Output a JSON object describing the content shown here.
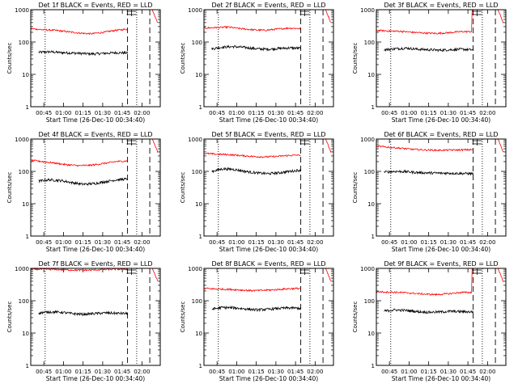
{
  "figure": {
    "xlabel": "Start Time (26-Dec-10 00:34:40)",
    "ylabel": "Counts/sec",
    "legend_text": "BLACK = Events, RED = LLD"
  },
  "axis": {
    "yscale": "log",
    "ylim": [
      1,
      1000
    ],
    "yticks": [
      1,
      10,
      100,
      1000
    ],
    "ytick_labels": [
      "1",
      "10",
      "100",
      "1000"
    ],
    "xlim_minutes": [
      "00:35",
      "02:14"
    ],
    "xticks": [
      "00:45",
      "01:00",
      "01:15",
      "01:30",
      "01:45",
      "02:00"
    ]
  },
  "colors": {
    "events": "#000000",
    "lld": "#ff0000"
  },
  "chart_data": [
    {
      "type": "line",
      "title": "Det 1f BLACK = Events, RED = LLD",
      "ylabel": "Counts/sec",
      "xlabel": "Start Time (26-Dec-10 00:34:40)",
      "yscale": "log",
      "ylim": [
        1,
        1000
      ],
      "series": [
        {
          "name": "Events",
          "color": "#000000",
          "x_start": "00:41",
          "x_end": "01:49",
          "values": [
            48,
            50,
            47,
            46,
            44,
            43,
            45,
            47,
            46
          ]
        },
        {
          "name": "LLD",
          "color": "#ff0000",
          "x_start": "00:35",
          "x_end": "01:49",
          "values": [
            260,
            240,
            230,
            210,
            190,
            180,
            200,
            230,
            250
          ]
        }
      ],
      "vlines": {
        "dotted": [
          "00:46",
          "01:56"
        ],
        "dashed": [
          "01:49",
          "02:06"
        ]
      }
    },
    {
      "type": "line",
      "title": "Det 2f BLACK = Events, RED = LLD",
      "ylabel": "Counts/sec",
      "xlabel": "Start Time (26-Dec-10 00:34:40)",
      "yscale": "log",
      "ylim": [
        1,
        1000
      ],
      "series": [
        {
          "name": "Events",
          "color": "#000000",
          "x_start": "00:41",
          "x_end": "01:49",
          "values": [
            62,
            70,
            72,
            68,
            62,
            60,
            63,
            66,
            64
          ]
        },
        {
          "name": "LLD",
          "color": "#ff0000",
          "x_start": "00:35",
          "x_end": "01:49",
          "values": [
            270,
            280,
            290,
            260,
            240,
            230,
            250,
            270,
            260
          ]
        }
      ],
      "vlines": {
        "dotted": [
          "00:46",
          "01:56"
        ],
        "dashed": [
          "01:49",
          "02:06"
        ]
      }
    },
    {
      "type": "line",
      "title": "Det 3f BLACK = Events, RED = LLD",
      "ylabel": "Counts/sec",
      "xlabel": "Start Time (26-Dec-10 00:34:40)",
      "yscale": "log",
      "ylim": [
        1,
        1000
      ],
      "series": [
        {
          "name": "Events",
          "color": "#000000",
          "x_start": "00:41",
          "x_end": "01:49",
          "values": [
            58,
            62,
            65,
            60,
            58,
            56,
            58,
            60,
            57
          ]
        },
        {
          "name": "LLD",
          "color": "#ff0000",
          "x_start": "00:35",
          "x_end": "01:49",
          "values": [
            230,
            220,
            215,
            200,
            190,
            185,
            195,
            210,
            1000
          ]
        }
      ],
      "vlines": {
        "dotted": [
          "00:46",
          "01:56"
        ],
        "dashed": [
          "01:49",
          "02:06"
        ]
      }
    },
    {
      "type": "line",
      "title": "Det 4f BLACK = Events, RED = LLD",
      "ylabel": "Counts/sec",
      "xlabel": "Start Time (26-Dec-10 00:34:40)",
      "yscale": "log",
      "ylim": [
        1,
        1000
      ],
      "series": [
        {
          "name": "Events",
          "color": "#000000",
          "x_start": "00:41",
          "x_end": "01:49",
          "values": [
            50,
            55,
            52,
            45,
            40,
            42,
            48,
            55,
            58
          ]
        },
        {
          "name": "LLD",
          "color": "#ff0000",
          "x_start": "00:35",
          "x_end": "01:49",
          "values": [
            220,
            200,
            180,
            160,
            150,
            155,
            175,
            200,
            210
          ]
        }
      ],
      "vlines": {
        "dotted": [
          "00:46",
          "01:56"
        ],
        "dashed": [
          "01:49",
          "02:06"
        ]
      }
    },
    {
      "type": "line",
      "title": "Det 5f BLACK = Events, RED = LLD",
      "ylabel": "Counts/sec",
      "xlabel": "Start Time (26-Dec-10 00:34:40)",
      "yscale": "log",
      "ylim": [
        1,
        1000
      ],
      "series": [
        {
          "name": "Events",
          "color": "#000000",
          "x_start": "00:41",
          "x_end": "01:49",
          "values": [
            100,
            120,
            115,
            100,
            90,
            85,
            90,
            100,
            110
          ]
        },
        {
          "name": "LLD",
          "color": "#ff0000",
          "x_start": "00:35",
          "x_end": "01:49",
          "values": [
            360,
            340,
            330,
            310,
            290,
            280,
            290,
            310,
            320
          ]
        }
      ],
      "vlines": {
        "dotted": [
          "00:46",
          "01:56"
        ],
        "dashed": [
          "01:49",
          "02:06"
        ]
      }
    },
    {
      "type": "line",
      "title": "Det 6f BLACK = Events, RED = LLD",
      "ylabel": "Counts/sec",
      "xlabel": "Start Time (26-Dec-10 00:34:40)",
      "yscale": "log",
      "ylim": [
        1,
        1000
      ],
      "series": [
        {
          "name": "Events",
          "color": "#000000",
          "x_start": "00:41",
          "x_end": "01:49",
          "values": [
            95,
            100,
            98,
            92,
            90,
            88,
            88,
            86,
            85
          ]
        },
        {
          "name": "LLD",
          "color": "#ff0000",
          "x_start": "00:35",
          "x_end": "01:49",
          "values": [
            600,
            560,
            520,
            480,
            460,
            450,
            455,
            460,
            470
          ]
        }
      ],
      "vlines": {
        "dotted": [
          "00:46",
          "01:56"
        ],
        "dashed": [
          "01:49",
          "02:06"
        ]
      }
    },
    {
      "type": "line",
      "title": "Det 7f BLACK = Events, RED = LLD",
      "ylabel": "Counts/sec",
      "xlabel": "Start Time (26-Dec-10 00:34:40)",
      "yscale": "log",
      "ylim": [
        1,
        1000
      ],
      "series": [
        {
          "name": "Events",
          "color": "#000000",
          "x_start": "00:41",
          "x_end": "01:49",
          "values": [
            42,
            45,
            44,
            40,
            38,
            40,
            42,
            41,
            40
          ]
        },
        {
          "name": "LLD",
          "color": "#ff0000",
          "x_start": "00:35",
          "x_end": "01:49",
          "values": [
            950,
            940,
            930,
            900,
            880,
            890,
            920,
            940,
            950
          ]
        }
      ],
      "vlines": {
        "dotted": [
          "00:46",
          "01:56"
        ],
        "dashed": [
          "01:49",
          "02:06"
        ]
      }
    },
    {
      "type": "line",
      "title": "Det 8f BLACK = Events, RED = LLD",
      "ylabel": "Counts/sec",
      "xlabel": "Start Time (26-Dec-10 00:34:40)",
      "yscale": "log",
      "ylim": [
        1,
        1000
      ],
      "series": [
        {
          "name": "Events",
          "color": "#000000",
          "x_start": "00:41",
          "x_end": "01:49",
          "values": [
            55,
            62,
            60,
            56,
            52,
            54,
            58,
            60,
            58
          ]
        },
        {
          "name": "LLD",
          "color": "#ff0000",
          "x_start": "00:35",
          "x_end": "01:49",
          "values": [
            240,
            230,
            225,
            215,
            205,
            210,
            220,
            235,
            240
          ]
        }
      ],
      "vlines": {
        "dotted": [
          "00:46",
          "01:56"
        ],
        "dashed": [
          "01:49",
          "02:06"
        ]
      }
    },
    {
      "type": "line",
      "title": "Det 9f BLACK = Events, RED = LLD",
      "ylabel": "Counts/sec",
      "xlabel": "Start Time (26-Dec-10 00:34:40)",
      "yscale": "log",
      "ylim": [
        1,
        1000
      ],
      "series": [
        {
          "name": "Events",
          "color": "#000000",
          "x_start": "00:41",
          "x_end": "01:49",
          "values": [
            48,
            52,
            50,
            46,
            44,
            45,
            47,
            46,
            45
          ]
        },
        {
          "name": "LLD",
          "color": "#ff0000",
          "x_start": "00:35",
          "x_end": "01:49",
          "values": [
            190,
            185,
            180,
            170,
            160,
            155,
            165,
            180,
            1000
          ]
        }
      ],
      "vlines": {
        "dotted": [
          "00:46",
          "01:56"
        ],
        "dashed": [
          "01:49",
          "02:06"
        ]
      }
    }
  ]
}
